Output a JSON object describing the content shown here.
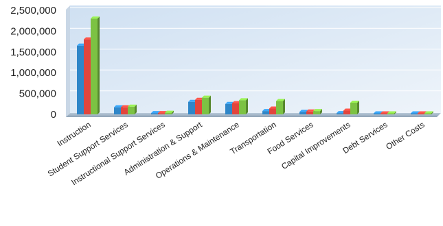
{
  "chart_data": {
    "type": "bar",
    "title": "",
    "xlabel": "",
    "ylabel": "",
    "ylim": [
      0,
      2500000
    ],
    "yticks": [
      "2,500,000",
      "2,000,000",
      "1,500,000",
      "1,000,000",
      "500,000",
      "0"
    ],
    "categories": [
      "Instruction",
      "Student Support Services",
      "Instructional Support Services",
      "Administration & Support",
      "Operations & Maintenance",
      "Transportation",
      "Food Services",
      "Capital Improvements",
      "Debt Services",
      "Other Costs"
    ],
    "series": [
      {
        "color": "#2f86c8",
        "values": [
          1650000,
          170000,
          30000,
          300000,
          250000,
          80000,
          60000,
          30000,
          5000,
          0
        ]
      },
      {
        "color": "#e2453c",
        "values": [
          1800000,
          170000,
          30000,
          350000,
          270000,
          140000,
          70000,
          90000,
          5000,
          0
        ]
      },
      {
        "color": "#7cc243",
        "values": [
          2300000,
          185000,
          40000,
          400000,
          340000,
          320000,
          80000,
          280000,
          5000,
          0
        ]
      }
    ],
    "grid": true,
    "legend": "none"
  }
}
